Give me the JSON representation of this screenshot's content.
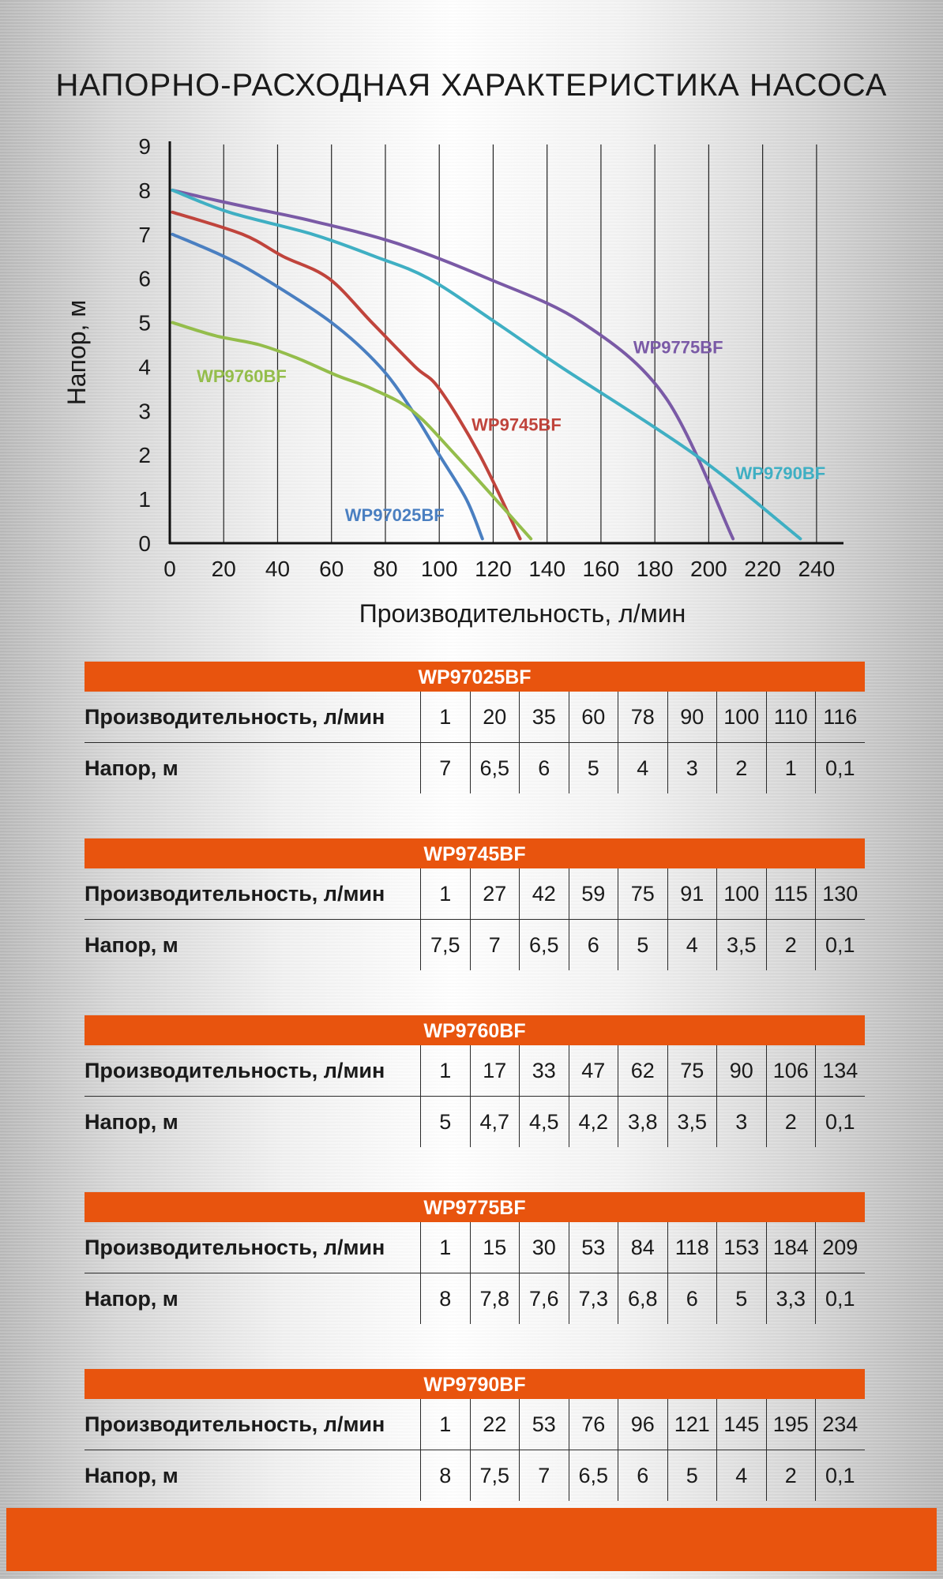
{
  "title": "НАПОРНО-РАСХОДНАЯ ХАРАКТЕРИСТИКА НАСОСА",
  "chart_data": {
    "type": "line",
    "xlabel": "Производительность, л/мин",
    "ylabel": "Напор, м",
    "xlim": [
      0,
      250
    ],
    "ylim": [
      0,
      9
    ],
    "x_ticks": [
      0,
      20,
      40,
      60,
      80,
      100,
      120,
      140,
      160,
      180,
      200,
      220,
      240
    ],
    "y_ticks": [
      0,
      1,
      2,
      3,
      4,
      5,
      6,
      7,
      8,
      9
    ],
    "grid": "vertical",
    "series": [
      {
        "name": "WP97025BF",
        "color": "#4a7fc1",
        "x": [
          1,
          20,
          35,
          60,
          78,
          90,
          100,
          110,
          116
        ],
        "y": [
          7,
          6.5,
          6,
          5,
          4,
          3,
          2,
          1,
          0.1
        ],
        "label_at": [
          65,
          0.5
        ]
      },
      {
        "name": "WP9745BF",
        "color": "#c0443c",
        "x": [
          1,
          27,
          42,
          59,
          75,
          91,
          100,
          115,
          130
        ],
        "y": [
          7.5,
          7,
          6.5,
          6,
          5,
          4,
          3.5,
          2,
          0.1
        ],
        "label_at": [
          112,
          2.55
        ]
      },
      {
        "name": "WP9760BF",
        "color": "#94bd4b",
        "x": [
          1,
          17,
          33,
          47,
          62,
          75,
          90,
          106,
          134
        ],
        "y": [
          5,
          4.7,
          4.5,
          4.2,
          3.8,
          3.5,
          3,
          2,
          0.1
        ],
        "label_at": [
          10,
          3.65
        ]
      },
      {
        "name": "WP9775BF",
        "color": "#7a5aa6",
        "x": [
          1,
          15,
          30,
          53,
          84,
          118,
          153,
          184,
          209
        ],
        "y": [
          8,
          7.8,
          7.6,
          7.3,
          6.8,
          6,
          5,
          3.3,
          0.1
        ],
        "label_at": [
          172,
          4.3
        ]
      },
      {
        "name": "WP9790BF",
        "color": "#3fafc3",
        "x": [
          1,
          22,
          53,
          76,
          96,
          121,
          145,
          195,
          234
        ],
        "y": [
          8,
          7.5,
          7,
          6.5,
          6,
          5,
          4,
          2,
          0.1
        ],
        "label_at": [
          210,
          1.45
        ]
      }
    ]
  },
  "tables": [
    {
      "model": "WP97025BF",
      "flow_label": "Производительность, л/мин",
      "head_label": "Напор, м",
      "flow": [
        "1",
        "20",
        "35",
        "60",
        "78",
        "90",
        "100",
        "110",
        "116"
      ],
      "head": [
        "7",
        "6,5",
        "6",
        "5",
        "4",
        "3",
        "2",
        "1",
        "0,1"
      ]
    },
    {
      "model": "WP9745BF",
      "flow_label": "Производительность, л/мин",
      "head_label": "Напор, м",
      "flow": [
        "1",
        "27",
        "42",
        "59",
        "75",
        "91",
        "100",
        "115",
        "130"
      ],
      "head": [
        "7,5",
        "7",
        "6,5",
        "6",
        "5",
        "4",
        "3,5",
        "2",
        "0,1"
      ]
    },
    {
      "model": "WP9760BF",
      "flow_label": "Производительность, л/мин",
      "head_label": "Напор, м",
      "flow": [
        "1",
        "17",
        "33",
        "47",
        "62",
        "75",
        "90",
        "106",
        "134"
      ],
      "head": [
        "5",
        "4,7",
        "4,5",
        "4,2",
        "3,8",
        "3,5",
        "3",
        "2",
        "0,1"
      ]
    },
    {
      "model": "WP9775BF",
      "flow_label": "Производительность, л/мин",
      "head_label": "Напор, м",
      "flow": [
        "1",
        "15",
        "30",
        "53",
        "84",
        "118",
        "153",
        "184",
        "209"
      ],
      "head": [
        "8",
        "7,8",
        "7,6",
        "7,3",
        "6,8",
        "6",
        "5",
        "3,3",
        "0,1"
      ]
    },
    {
      "model": "WP9790BF",
      "flow_label": "Производительность, л/мин",
      "head_label": "Напор, м",
      "flow": [
        "1",
        "22",
        "53",
        "76",
        "96",
        "121",
        "145",
        "195",
        "234"
      ],
      "head": [
        "8",
        "7,5",
        "7",
        "6,5",
        "6",
        "5",
        "4",
        "2",
        "0,1"
      ]
    }
  ]
}
